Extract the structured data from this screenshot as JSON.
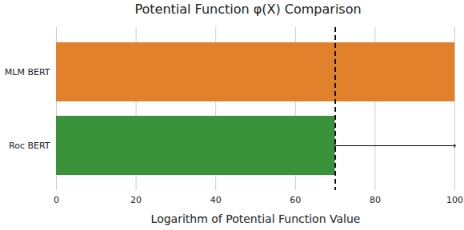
{
  "chart_data": {
    "type": "bar",
    "orientation": "horizontal",
    "title": "Potential Function φ(X) Comparison",
    "x_label": "Logarithm of Potential Function Value",
    "categories": [
      "MLM BERT",
      "Roc BERT"
    ],
    "values": [
      100,
      70
    ],
    "colors": [
      "#e1812c",
      "#3a923a"
    ],
    "xlim": [
      0,
      100
    ],
    "xticks": [
      0,
      20,
      40,
      60,
      80,
      100
    ],
    "grid": true
  }
}
